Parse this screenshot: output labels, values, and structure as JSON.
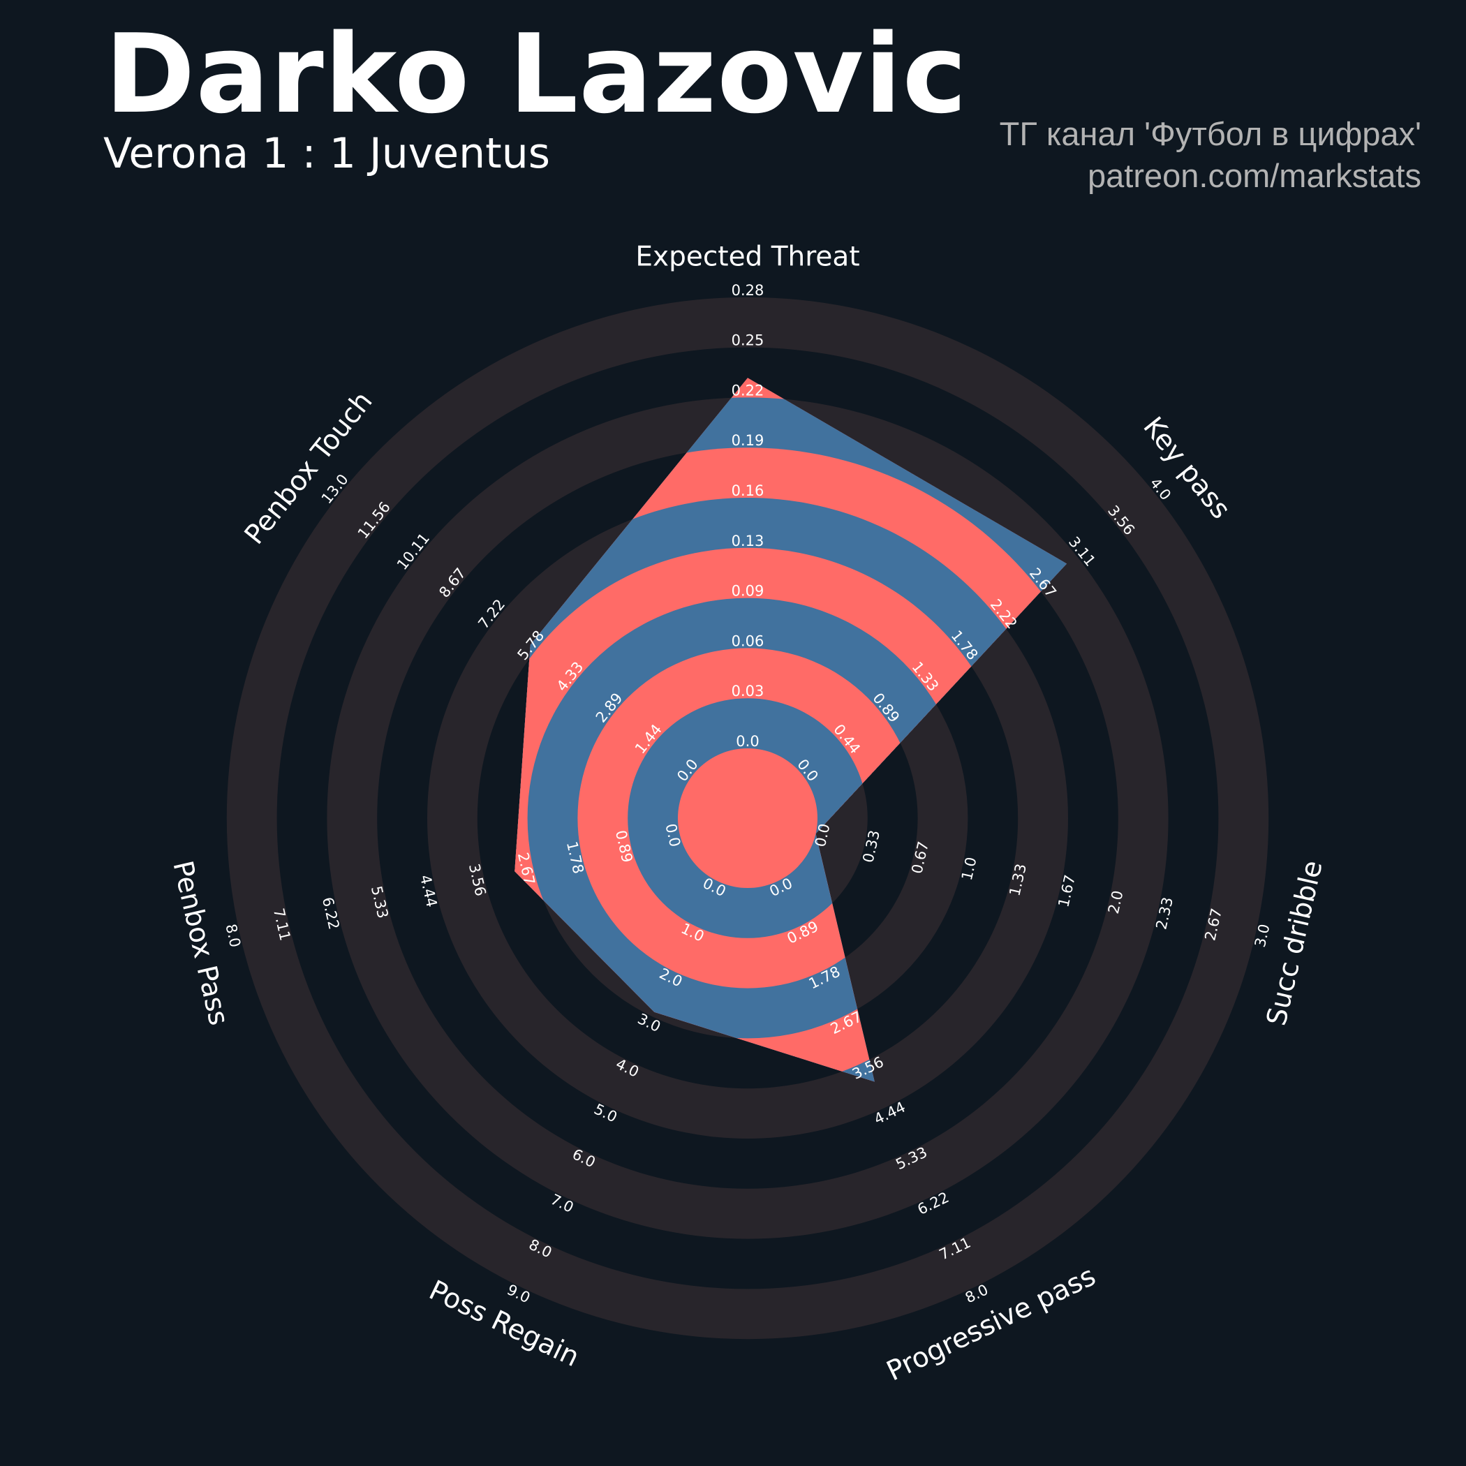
{
  "title": "Darko Lazovic",
  "subtitle": "Verona 1 : 1 Juventus",
  "credits": {
    "line1": "ТГ канал 'Футбол в цифрах'",
    "line2": "patreon.com/markstats"
  },
  "colors": {
    "background": "#0e1720",
    "ring_dark": "#28252b",
    "polygon_blue": "#41729e",
    "polygon_red": "#ff6b67"
  },
  "chart_data": {
    "type": "radar",
    "params": [
      "Expected Threat",
      "Key pass",
      "Succ dribble",
      "Progressive pass",
      "Poss Regain",
      "Penbox Pass",
      "Penbox Touch"
    ],
    "min": [
      0,
      0,
      0,
      0,
      0,
      0,
      0
    ],
    "max": [
      0.28,
      4.0,
      3.0,
      8.0,
      9.0,
      8.0,
      13.0
    ],
    "values": [
      0.23,
      3.0,
      0.0,
      3.95,
      2.9,
      3.0,
      6.0
    ],
    "tick_labels": [
      [
        "0.0",
        "0.03",
        "0.06",
        "0.09",
        "0.13",
        "0.16",
        "0.19",
        "0.22",
        "0.25",
        "0.28"
      ],
      [
        "0.0",
        "0.44",
        "0.89",
        "1.33",
        "1.78",
        "2.22",
        "2.67",
        "3.11",
        "3.56",
        "4.0"
      ],
      [
        "0.0",
        "0.33",
        "0.67",
        "1.0",
        "1.33",
        "1.67",
        "2.0",
        "2.33",
        "2.67",
        "3.0"
      ],
      [
        "0.0",
        "0.89",
        "1.78",
        "2.67",
        "3.56",
        "4.44",
        "5.33",
        "6.22",
        "7.11",
        "8.0"
      ],
      [
        "0.0",
        "1.0",
        "2.0",
        "3.0",
        "4.0",
        "5.0",
        "6.0",
        "7.0",
        "8.0",
        "9.0"
      ],
      [
        "0.0",
        "0.89",
        "1.78",
        "2.67",
        "3.56",
        "4.44",
        "5.33",
        "6.22",
        "7.11",
        "8.0"
      ],
      [
        "0.0",
        "1.44",
        "2.89",
        "4.33",
        "5.78",
        "7.22",
        "8.67",
        "10.11",
        "11.56",
        "13.0"
      ]
    ]
  }
}
